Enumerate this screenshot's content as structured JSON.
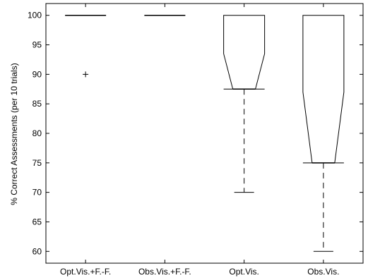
{
  "chart_data": {
    "type": "box",
    "title": "",
    "xlabel": "",
    "ylabel": "% Correct Assessments (per 10 trials)",
    "ylim": [
      58,
      102
    ],
    "yticks": [
      60,
      65,
      70,
      75,
      80,
      85,
      90,
      95,
      100
    ],
    "grid": false,
    "categories": [
      "Opt.Vis.+F.-F.",
      "Obs.Vis.+F.-F.",
      "Opt.Vis.",
      "Obs.Vis."
    ],
    "boxes": [
      {
        "whisker_low": 100,
        "q1": 100,
        "median": 100,
        "q3": 100,
        "whisker_high": 100,
        "notch_low": 100,
        "notch_high": 100,
        "outliers": [
          90
        ]
      },
      {
        "whisker_low": 100,
        "q1": 100,
        "median": 100,
        "q3": 100,
        "whisker_high": 100,
        "notch_low": 100,
        "notch_high": 100,
        "outliers": []
      },
      {
        "whisker_low": 70,
        "q1": 87.5,
        "median": 87.5,
        "q3": 100,
        "whisker_high": 100,
        "notch_low": 87.5,
        "notch_high": 93.5,
        "outliers": []
      },
      {
        "whisker_low": 60,
        "q1": 75,
        "median": 75,
        "q3": 100,
        "whisker_high": 100,
        "notch_low": 75,
        "notch_high": 87,
        "outliers": []
      }
    ]
  }
}
